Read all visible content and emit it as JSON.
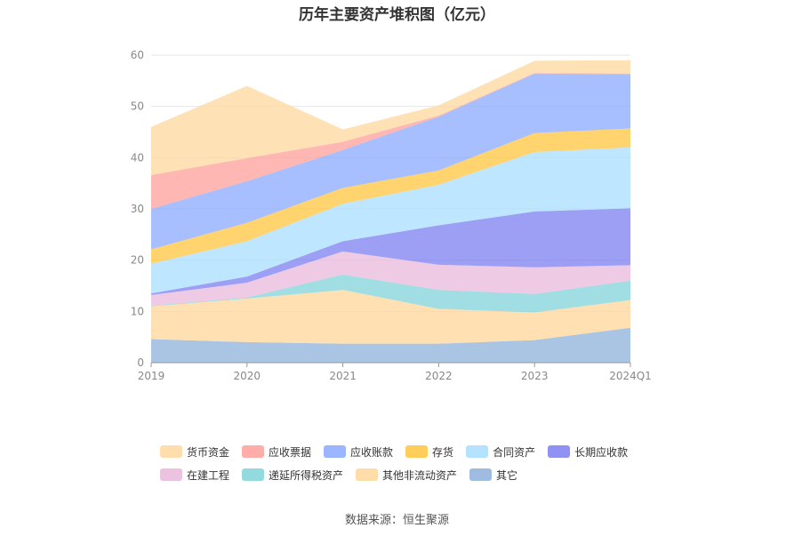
{
  "chart_data": {
    "type": "area",
    "stacked": true,
    "title": "历年主要资产堆积图（亿元）",
    "categories": [
      "2019",
      "2020",
      "2021",
      "2022",
      "2023",
      "2024Q1"
    ],
    "ylim": [
      0,
      60
    ],
    "yticks": [
      "0",
      "10",
      "20",
      "30",
      "40",
      "50",
      "60"
    ],
    "grid": true,
    "legend_position": "bottom",
    "series": [
      {
        "name": "其它",
        "color": "#8eb0db",
        "values": [
          4.6,
          4.0,
          3.7,
          3.7,
          4.4,
          6.8
        ]
      },
      {
        "name": "其他非流动资产",
        "color": "#ffd699",
        "values": [
          6.4,
          8.5,
          10.5,
          6.8,
          5.4,
          5.4
        ]
      },
      {
        "name": "递延所得税资产",
        "color": "#80d3d9",
        "values": [
          0.1,
          0.2,
          3.0,
          3.7,
          3.6,
          3.8
        ]
      },
      {
        "name": "在建工程",
        "color": "#e8b8dc",
        "values": [
          2.1,
          2.9,
          4.5,
          4.9,
          5.2,
          3.0
        ]
      },
      {
        "name": "长期应收款",
        "color": "#7b7ff0",
        "values": [
          0.3,
          1.2,
          2.0,
          7.7,
          10.9,
          11.1
        ]
      },
      {
        "name": "合同资产",
        "color": "#a8ddff",
        "values": [
          5.8,
          6.9,
          7.3,
          7.9,
          11.6,
          11.9
        ]
      },
      {
        "name": "存货",
        "color": "#ffc53d",
        "values": [
          2.8,
          3.6,
          3.1,
          2.8,
          3.7,
          3.7
        ]
      },
      {
        "name": "应收账款",
        "color": "#8aa8ff",
        "values": [
          7.9,
          8.1,
          7.4,
          10.5,
          11.6,
          10.6
        ]
      },
      {
        "name": "应收票据",
        "color": "#ff9f99",
        "values": [
          6.6,
          4.5,
          1.6,
          0.2,
          0.1,
          0.1
        ]
      },
      {
        "name": "货币资金",
        "color": "#ffd79e",
        "values": [
          9.4,
          14.1,
          2.4,
          2.0,
          2.4,
          2.6
        ]
      }
    ]
  },
  "legend": {
    "row1": [
      {
        "name": "货币资金",
        "color": "#ffd79e"
      },
      {
        "name": "应收票据",
        "color": "#ff9f99"
      },
      {
        "name": "应收账款",
        "color": "#8aa8ff"
      },
      {
        "name": "存货",
        "color": "#ffc53d"
      },
      {
        "name": "合同资产",
        "color": "#a8ddff"
      },
      {
        "name": "长期应收款",
        "color": "#7b7ff0"
      }
    ],
    "row2": [
      {
        "name": "在建工程",
        "color": "#e8b8dc"
      },
      {
        "name": "递延所得税资产",
        "color": "#80d3d9"
      },
      {
        "name": "其他非流动资产",
        "color": "#ffd699"
      },
      {
        "name": "其它",
        "color": "#8eb0db"
      }
    ]
  },
  "source": "数据来源：恒生聚源"
}
